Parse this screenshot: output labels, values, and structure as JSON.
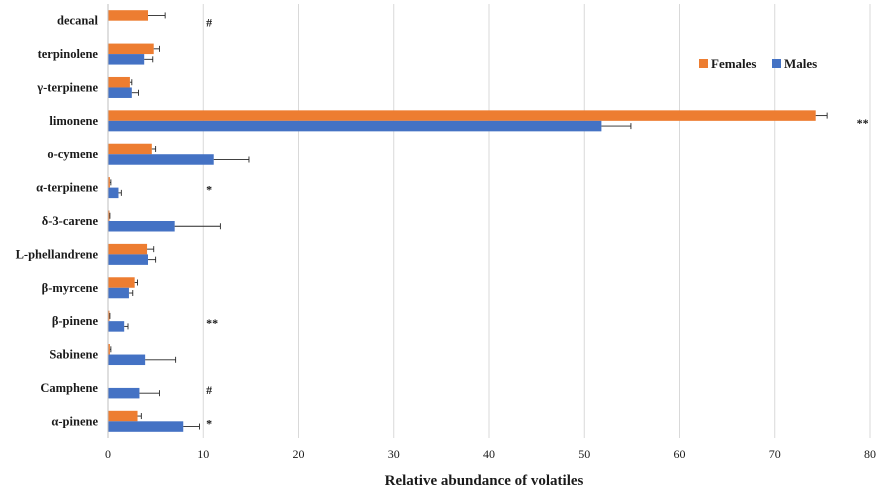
{
  "chart_data": {
    "type": "bar",
    "orientation": "horizontal",
    "title": "",
    "xlabel": "Relative abundance of volatiles",
    "ylabel": "",
    "xlim": [
      0,
      80
    ],
    "xticks": [
      0,
      10,
      20,
      30,
      40,
      50,
      60,
      70,
      80
    ],
    "grid": "vertical",
    "legend_position": "top-right",
    "categories": [
      "decanal",
      "terpinolene",
      "γ-terpinene",
      "limonene",
      "o-cymene",
      "α-terpinene",
      "δ-3-carene",
      "L-phellandrene",
      "β-myrcene",
      "β-pinene",
      "Sabinene",
      "Camphene",
      "α-pinene"
    ],
    "series": [
      {
        "name": "Females",
        "color": "#ED7D31",
        "values": [
          4.2,
          4.8,
          2.3,
          74.3,
          4.6,
          0.2,
          0.15,
          4.1,
          2.8,
          0.15,
          0.2,
          0.0,
          3.1
        ],
        "errors": [
          1.8,
          0.6,
          0.2,
          1.2,
          0.4,
          0.1,
          0.05,
          0.7,
          0.3,
          0.05,
          0.1,
          0.0,
          0.4
        ]
      },
      {
        "name": "Males",
        "color": "#4472C4",
        "values": [
          0.0,
          3.8,
          2.5,
          51.8,
          11.1,
          1.1,
          7.0,
          4.2,
          2.2,
          1.7,
          3.9,
          3.3,
          7.9
        ],
        "errors": [
          0.0,
          0.9,
          0.7,
          3.1,
          3.7,
          0.3,
          4.8,
          0.8,
          0.4,
          0.4,
          3.2,
          2.1,
          1.7
        ]
      }
    ],
    "annotations": [
      {
        "category": "decanal",
        "text": "#",
        "x": 10.3
      },
      {
        "category": "limonene",
        "text": "**",
        "x": 78.6
      },
      {
        "category": "α-terpinene",
        "text": "*",
        "x": 10.3
      },
      {
        "category": "β-pinene",
        "text": "**",
        "x": 10.3
      },
      {
        "category": "Camphene",
        "text": "#",
        "x": 10.3
      },
      {
        "category": "α-pinene",
        "text": "*",
        "x": 10.3
      }
    ]
  }
}
